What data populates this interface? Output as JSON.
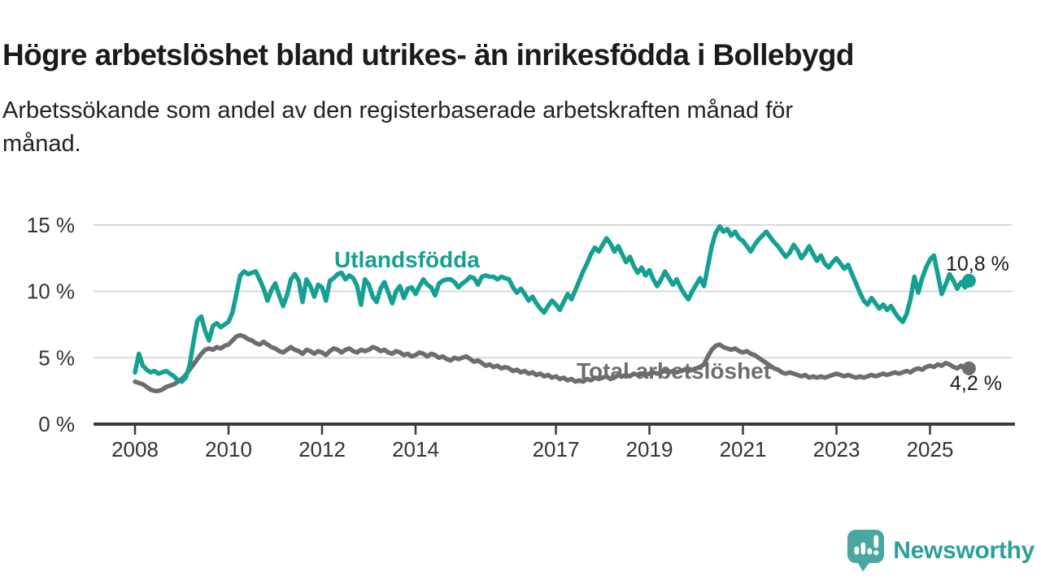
{
  "page": {
    "title": "Högre arbetslöshet bland utrikes- än inrikesfödda i Bollebygd",
    "subtitle_lines": [
      "Arbetssökande som andel av den registerbaserade arbetskraften månad för",
      "månad."
    ]
  },
  "branding": {
    "wordmark": "Newsworthy",
    "icon": "newsworthy-speech-bubble-bar-chart-icon",
    "icon_color": "#4aa6a0",
    "wordmark_color": "#2ba09a"
  },
  "chart_data": {
    "type": "line",
    "title": "Högre arbetslöshet bland utrikes- än inrikesfödda i Bollebygd",
    "subtitle": "Arbetssökande som andel av den registerbaserade arbetskraften månad för månad.",
    "unit": "%",
    "grid": "horizontal",
    "legend_position": "inline-labels",
    "colors": {
      "gridline": "#d9d9d9",
      "axis": "#3b3b3b",
      "tick_text": "#333333",
      "annotation_text": "#1a1a1a"
    },
    "x": {
      "frequency": "monthly",
      "start_year": 2008,
      "start_month": 1,
      "ticks": [
        {
          "year": 2008,
          "label": "2008"
        },
        {
          "year": 2010,
          "label": "2010"
        },
        {
          "year": 2012,
          "label": "2012"
        },
        {
          "year": 2014,
          "label": "2014"
        },
        {
          "year": 2017,
          "label": "2017"
        },
        {
          "year": 2019,
          "label": "2019"
        },
        {
          "year": 2021,
          "label": "2021"
        },
        {
          "year": 2023,
          "label": "2023"
        },
        {
          "year": 2025,
          "label": "2025"
        }
      ]
    },
    "y": {
      "min": 0,
      "max": 16.6,
      "ticks": [
        {
          "value": 0,
          "label": "0 %"
        },
        {
          "value": 5,
          "label": "5 %"
        },
        {
          "value": 10,
          "label": "10 %"
        },
        {
          "value": 15,
          "label": "15 %"
        }
      ]
    },
    "series": [
      {
        "name": "Utlandsfödda",
        "color": "#14a092",
        "end_label": "10,8 %",
        "last_value": 10.8,
        "values": [
          3.9,
          5.3,
          4.4,
          4.1,
          3.9,
          4.0,
          3.8,
          3.9,
          4.0,
          3.8,
          3.6,
          3.3,
          3.2,
          3.5,
          4.4,
          6.2,
          7.8,
          8.1,
          7.0,
          6.3,
          7.4,
          7.6,
          7.3,
          7.5,
          7.7,
          8.4,
          9.8,
          11.2,
          11.5,
          11.3,
          11.4,
          11.5,
          10.9,
          10.2,
          9.3,
          10.1,
          10.6,
          9.7,
          8.9,
          9.7,
          10.9,
          11.3,
          10.8,
          9.2,
          10.9,
          10.4,
          9.6,
          10.5,
          10.3,
          9.3,
          10.8,
          11.0,
          11.3,
          11.4,
          10.9,
          11.2,
          11.0,
          10.4,
          9.0,
          10.9,
          10.5,
          9.6,
          9.2,
          10.2,
          10.7,
          9.9,
          9.1,
          10.0,
          10.4,
          9.5,
          10.2,
          10.3,
          9.8,
          10.4,
          10.9,
          10.5,
          10.3,
          9.7,
          10.6,
          10.8,
          10.9,
          10.9,
          10.7,
          10.3,
          10.6,
          10.8,
          11.1,
          11.0,
          10.5,
          11.1,
          11.2,
          11.1,
          11.1,
          10.9,
          11.1,
          11.0,
          10.9,
          10.3,
          9.9,
          10.2,
          9.8,
          9.3,
          9.6,
          9.1,
          8.7,
          8.4,
          8.9,
          9.3,
          9.0,
          8.6,
          9.2,
          9.8,
          9.4,
          10.1,
          10.8,
          11.5,
          12.1,
          12.8,
          13.3,
          13.0,
          13.5,
          14.0,
          13.6,
          13.0,
          13.4,
          12.8,
          12.2,
          12.6,
          11.9,
          11.4,
          11.8,
          11.2,
          11.6,
          10.9,
          10.4,
          10.9,
          11.5,
          11.0,
          10.5,
          10.9,
          10.3,
          9.8,
          9.4,
          10.0,
          10.5,
          11.0,
          10.4,
          11.9,
          13.4,
          14.4,
          14.9,
          14.5,
          14.7,
          14.2,
          14.5,
          14.0,
          13.8,
          13.4,
          13.0,
          13.5,
          13.9,
          14.2,
          14.5,
          14.1,
          13.7,
          13.4,
          13.0,
          12.6,
          12.9,
          13.5,
          13.1,
          12.5,
          12.9,
          13.4,
          12.8,
          12.3,
          12.7,
          12.1,
          11.8,
          12.2,
          12.5,
          12.1,
          11.7,
          12.0,
          11.3,
          10.6,
          9.9,
          9.3,
          9.0,
          9.5,
          9.1,
          8.7,
          9.0,
          8.6,
          8.9,
          8.4,
          8.0,
          7.7,
          8.3,
          9.4,
          11.1,
          9.9,
          11.0,
          11.8,
          12.4,
          12.7,
          11.3,
          9.8,
          10.5,
          11.3,
          10.8,
          10.2,
          10.7,
          10.3,
          10.8
        ]
      },
      {
        "name": "Total arbetslöshet",
        "color": "#6c6d70",
        "end_label": "4,2 %",
        "last_value": 4.2,
        "values": [
          3.2,
          3.1,
          3.0,
          2.8,
          2.6,
          2.5,
          2.5,
          2.6,
          2.8,
          2.9,
          3.0,
          3.2,
          3.4,
          3.7,
          4.1,
          4.5,
          4.9,
          5.3,
          5.6,
          5.7,
          5.6,
          5.8,
          5.7,
          5.9,
          6.0,
          6.3,
          6.6,
          6.7,
          6.6,
          6.4,
          6.3,
          6.1,
          6.0,
          6.2,
          6.0,
          5.8,
          5.7,
          5.5,
          5.4,
          5.6,
          5.8,
          5.6,
          5.5,
          5.3,
          5.6,
          5.5,
          5.3,
          5.5,
          5.4,
          5.2,
          5.5,
          5.7,
          5.6,
          5.4,
          5.6,
          5.7,
          5.5,
          5.4,
          5.6,
          5.5,
          5.6,
          5.8,
          5.7,
          5.5,
          5.6,
          5.4,
          5.3,
          5.5,
          5.4,
          5.2,
          5.3,
          5.1,
          5.2,
          5.4,
          5.3,
          5.1,
          5.3,
          5.2,
          5.0,
          5.1,
          4.9,
          4.8,
          5.0,
          4.9,
          5.0,
          5.1,
          4.9,
          4.7,
          4.8,
          4.6,
          4.4,
          4.5,
          4.3,
          4.4,
          4.2,
          4.3,
          4.2,
          4.0,
          4.1,
          3.9,
          4.0,
          3.8,
          3.9,
          3.7,
          3.8,
          3.6,
          3.7,
          3.5,
          3.6,
          3.4,
          3.5,
          3.3,
          3.4,
          3.2,
          3.3,
          3.2,
          3.4,
          3.3,
          3.5,
          3.4,
          3.5,
          3.6,
          3.4,
          3.5,
          3.7,
          3.6,
          3.7,
          3.6,
          3.8,
          3.7,
          3.8,
          3.7,
          3.8,
          3.9,
          3.8,
          3.9,
          4.0,
          3.9,
          4.0,
          3.9,
          4.0,
          4.1,
          4.0,
          4.1,
          4.2,
          4.3,
          4.5,
          5.1,
          5.6,
          5.9,
          6.0,
          5.8,
          5.7,
          5.6,
          5.7,
          5.5,
          5.4,
          5.5,
          5.3,
          5.2,
          5.0,
          4.8,
          4.6,
          4.4,
          4.2,
          4.1,
          3.9,
          3.8,
          3.9,
          3.8,
          3.7,
          3.6,
          3.7,
          3.5,
          3.6,
          3.5,
          3.6,
          3.5,
          3.6,
          3.7,
          3.8,
          3.7,
          3.6,
          3.7,
          3.6,
          3.5,
          3.6,
          3.5,
          3.6,
          3.7,
          3.6,
          3.7,
          3.8,
          3.7,
          3.8,
          3.9,
          3.8,
          3.9,
          4.0,
          3.9,
          4.1,
          4.2,
          4.1,
          4.3,
          4.4,
          4.3,
          4.5,
          4.4,
          4.6,
          4.5,
          4.3,
          4.2,
          4.4,
          4.1,
          4.2
        ]
      }
    ]
  }
}
